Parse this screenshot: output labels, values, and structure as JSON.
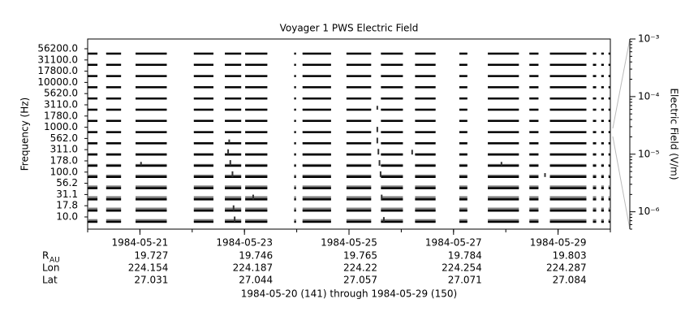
{
  "chart_data": {
    "type": "spectrogram",
    "title": "Voyager 1 PWS Electric Field",
    "ylabel": "Frequency (Hz)",
    "categories": [
      "56200.0",
      "31100.0",
      "17800.0",
      "10000.0",
      "5620.0",
      "3110.0",
      "1780.0",
      "1000.0",
      "562.0",
      "311.0",
      "178.0",
      "100.0",
      "56.2",
      "31.1",
      "17.8",
      "10.0"
    ],
    "xlim": [
      "1984-05-20",
      "1984-05-30"
    ],
    "xticks": [
      "1984-05-21",
      "1984-05-23",
      "1984-05-25",
      "1984-05-27",
      "1984-05-29"
    ],
    "coverage": [
      [
        "1984-05-20T00:00",
        "1984-05-20T04:30"
      ],
      [
        "1984-05-20T08:30",
        "1984-05-20T15:20"
      ],
      [
        "1984-05-20T22:00",
        "1984-05-21T12:20"
      ],
      [
        "1984-05-22T00:45",
        "1984-05-22T09:45"
      ],
      [
        "1984-05-22T15:00",
        "1984-05-22T22:30"
      ],
      [
        "1984-05-23T00:20",
        "1984-05-23T10:30"
      ],
      [
        "1984-05-23T22:50",
        "1984-05-23T23:40"
      ],
      [
        "1984-05-24T02:40",
        "1984-05-24T15:45"
      ],
      [
        "1984-05-24T22:50",
        "1984-05-25T10:10"
      ],
      [
        "1984-05-25T14:40",
        "1984-05-26T00:45"
      ],
      [
        "1984-05-26T06:20",
        "1984-05-26T15:45"
      ],
      [
        "1984-05-27T02:40",
        "1984-05-27T06:20"
      ],
      [
        "1984-05-27T15:45",
        "1984-05-28T06:00"
      ],
      [
        "1984-05-28T10:50",
        "1984-05-28T15:00"
      ],
      [
        "1984-05-28T20:15",
        "1984-05-29T13:00"
      ],
      [
        "1984-05-29T16:00",
        "1984-05-29T17:30"
      ],
      [
        "1984-05-29T19:50",
        "1984-05-29T21:00"
      ],
      [
        "1984-05-29T23:10",
        "1984-05-30T00:00"
      ]
    ],
    "background": [
      1e-06,
      1e-06,
      1e-06,
      1e-06,
      1e-06,
      1e-06,
      1e-06,
      1e-06,
      1.2e-06,
      1.5e-06,
      2e-06,
      3e-06,
      4e-06,
      6e-06,
      5e-06,
      4e-06
    ],
    "bursts": [
      {
        "time": "1984-05-22T16:30",
        "channel": 9,
        "value": 3e-05
      },
      {
        "time": "1984-05-22T17:30",
        "channel": 10,
        "value": 4e-05
      },
      {
        "time": "1984-05-22T18:30",
        "channel": 11,
        "value": 4e-05
      },
      {
        "time": "1984-05-22T17:00",
        "channel": 8,
        "value": 1e-05
      },
      {
        "time": "1984-05-22T19:00",
        "channel": 14,
        "value": 3e-05
      },
      {
        "time": "1984-05-22T19:30",
        "channel": 15,
        "value": 3e-05
      },
      {
        "time": "1984-05-25T13:00",
        "channel": 5,
        "value": 1e-05
      },
      {
        "time": "1984-05-25T13:00",
        "channel": 7,
        "value": 3e-05
      },
      {
        "time": "1984-05-25T13:00",
        "channel": 8,
        "value": 4e-05
      },
      {
        "time": "1984-05-25T13:30",
        "channel": 9,
        "value": 4e-05
      },
      {
        "time": "1984-05-25T14:00",
        "channel": 10,
        "value": 4e-05
      },
      {
        "time": "1984-05-25T14:30",
        "channel": 11,
        "value": 4e-05
      },
      {
        "time": "1984-05-25T15:00",
        "channel": 13,
        "value": 2e-05
      },
      {
        "time": "1984-05-25T16:00",
        "channel": 15,
        "value": 2e-05
      },
      {
        "time": "1984-05-26T05:00",
        "channel": 9,
        "value": 2e-05
      },
      {
        "time": "1984-05-21T00:30",
        "channel": 10,
        "value": 1e-05
      },
      {
        "time": "1984-05-27T22:00",
        "channel": 10,
        "value": 1e-05
      },
      {
        "time": "1984-05-28T18:00",
        "channel": 11,
        "value": 1e-05
      },
      {
        "time": "1984-05-23T04:00",
        "channel": 13,
        "value": 2e-05
      }
    ],
    "y2label": "Electric Field (V/m)",
    "y2lim": [
      5e-07,
      0.001
    ],
    "y2log": true,
    "y2ticks": [
      {
        "value": 0.001,
        "label": "10⁻³"
      },
      {
        "value": 0.0001,
        "label": "10⁻⁴"
      },
      {
        "value": 1e-05,
        "label": "10⁻⁵"
      },
      {
        "value": 1e-06,
        "label": "10⁻⁶"
      }
    ],
    "background_color": "#7f7f7f",
    "line_color": "#000000",
    "ephemeris": [
      {
        "label": "R",
        "subscript": "AU",
        "values": [
          19.727,
          19.746,
          19.765,
          19.784,
          19.803
        ]
      },
      {
        "label": "Lon",
        "values": [
          224.154,
          224.187,
          224.22,
          224.254,
          224.287
        ]
      },
      {
        "label": "Lat",
        "values": [
          27.031,
          27.044,
          27.057,
          27.071,
          27.084
        ]
      }
    ],
    "footer": "1984-05-20 (141) through 1984-05-29 (150)"
  }
}
